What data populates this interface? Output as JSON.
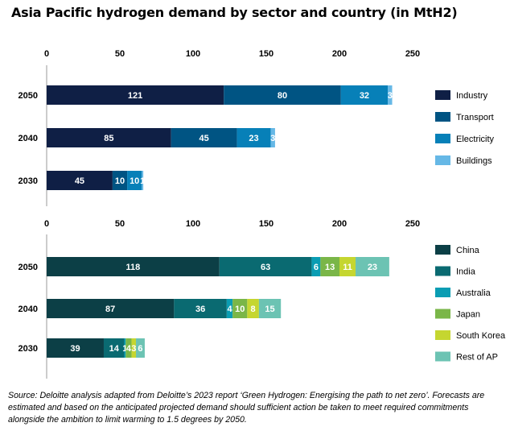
{
  "title": "Asia Pacific hydrogen demand by sector and country (in MtH2)",
  "source": "Source: Deloitte analysis adapted from Deloitte’s 2023 report ‘Green Hydrogen: Energising the path to net zero’. Forecasts are estimated and based on the anticipated projected demand should sufficient action be taken to meet required commitments alongside the ambition to limit warming to 1.5 degrees by 2050.",
  "chart_data": [
    {
      "type": "bar",
      "orientation": "horizontal",
      "stacked": true,
      "categories": [
        "2050",
        "2040",
        "2030"
      ],
      "series": [
        {
          "name": "Industry",
          "values": [
            121,
            85,
            45
          ],
          "labels": [
            "121",
            "85",
            "45"
          ],
          "color": "#0f1f45"
        },
        {
          "name": "Transport",
          "values": [
            80,
            45,
            10
          ],
          "labels": [
            "80",
            "45",
            "10"
          ],
          "color": "#005483"
        },
        {
          "name": "Electricity",
          "values": [
            32,
            23,
            10
          ],
          "labels": [
            "32",
            "23",
            "10"
          ],
          "color": "#0780b8"
        },
        {
          "name": "Buildings",
          "values": [
            3,
            3,
            1
          ],
          "labels": [
            "3",
            "3",
            "1"
          ],
          "color": "#66b8e6"
        }
      ],
      "xlim": [
        0,
        250
      ],
      "ticks": [
        0,
        50,
        100,
        150,
        200,
        250
      ],
      "axis_position": "top",
      "legend": "right",
      "grid": false
    },
    {
      "type": "bar",
      "orientation": "horizontal",
      "stacked": true,
      "categories": [
        "2050",
        "2040",
        "2030"
      ],
      "series": [
        {
          "name": "China",
          "values": [
            118,
            87,
            39
          ],
          "labels": [
            "118",
            "87",
            "39"
          ],
          "color": "#0c3f46"
        },
        {
          "name": "India",
          "values": [
            63,
            36,
            14
          ],
          "labels": [
            "63",
            "36",
            "14"
          ],
          "color": "#0a6a71"
        },
        {
          "name": "Australia",
          "values": [
            6,
            4,
            1
          ],
          "labels": [
            "6",
            "4",
            "1"
          ],
          "color": "#0a9db3"
        },
        {
          "name": "Japan",
          "values": [
            13,
            10,
            4
          ],
          "labels": [
            "13",
            "10",
            "4"
          ],
          "color": "#7ab648"
        },
        {
          "name": "South Korea",
          "values": [
            11,
            8,
            3
          ],
          "labels": [
            "11",
            "8",
            "3"
          ],
          "color": "#c5d630"
        },
        {
          "name": "Rest of AP",
          "values": [
            23,
            15,
            6
          ],
          "labels": [
            "23",
            "15",
            "6"
          ],
          "color": "#6cc3b3"
        }
      ],
      "xlim": [
        0,
        250
      ],
      "ticks": [
        0,
        50,
        100,
        150,
        200,
        250
      ],
      "axis_position": "top",
      "legend": "right",
      "grid": false
    }
  ]
}
